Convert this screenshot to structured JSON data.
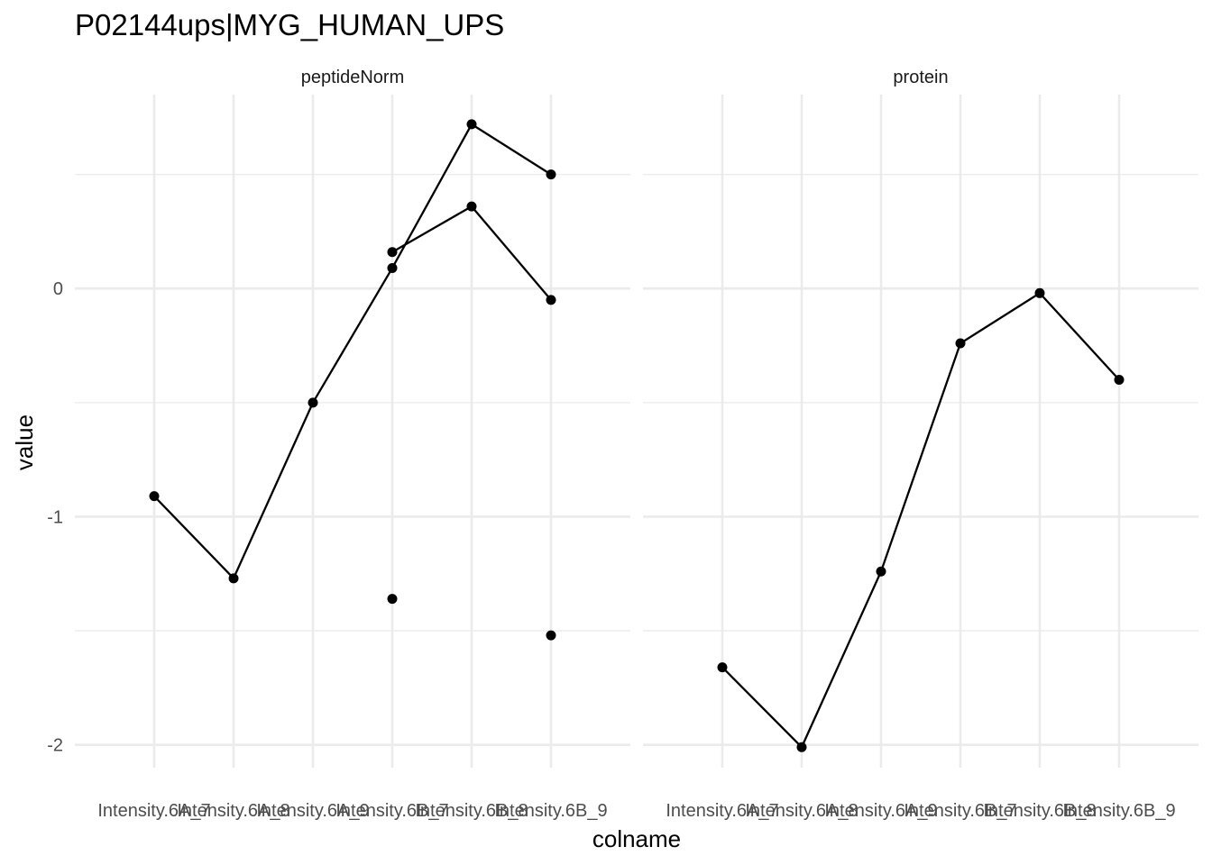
{
  "chart_data": {
    "type": "line",
    "title": "P02144ups|MYG_HUMAN_UPS",
    "xlabel": "colname",
    "ylabel": "value",
    "categories": [
      "Intensity.6A_7",
      "Intensity.6A_8",
      "Intensity.6A_9",
      "Intensity.6B_7",
      "Intensity.6B_8",
      "Intensity.6B_9"
    ],
    "ylim": [
      -2.1,
      0.85
    ],
    "yticks": [
      0,
      -1,
      -2
    ],
    "grid": true,
    "panels": [
      {
        "name": "peptideNorm",
        "series": [
          {
            "values": [
              -0.91,
              -1.27,
              -0.5,
              0.09,
              0.72,
              0.5
            ]
          },
          {
            "values": [
              null,
              null,
              null,
              0.16,
              0.36,
              -0.05
            ]
          },
          {
            "values": [
              null,
              null,
              null,
              -1.36,
              null,
              -1.52
            ]
          }
        ],
        "connected": [
          true,
          true,
          false
        ]
      },
      {
        "name": "protein",
        "series": [
          {
            "values": [
              -1.66,
              -2.01,
              -1.24,
              -0.24,
              -0.02,
              -0.4
            ]
          }
        ],
        "connected": [
          true
        ]
      }
    ]
  }
}
